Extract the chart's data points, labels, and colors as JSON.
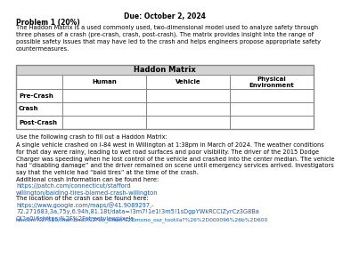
{
  "title": "Due: October 2, 2024",
  "problem_title": "Problem 1 (20%)",
  "intro_text": "The Haddon Matrix is a used commonly used, two-dimensional model used to analyze safety through\nthree phases of a crash (pre-crash, crash, post-crash). The matrix provides insight into the range of\npossible safety issues that may have led to the crash and helps engineers propose appropriate safety\ncountermeasures.",
  "table_title": "Haddon Matrix",
  "col_headers": [
    "Human",
    "Vehicle",
    "Physical\nEnvironment"
  ],
  "row_headers": [
    "Pre-Crash",
    "Crash",
    "Post-Crash"
  ],
  "prompt_text": "Use the following crash to fill out a Haddon Matrix:",
  "crash_text": "A single vehicle crashed on I-84 west in Willington at 1:38pm in March of 2024. The weather conditions\nfor that day were rainy, leading to wet road surfaces and poor visibility. The driver of the 2015 Dodge\nCharger was speeding when he lost control of the vehicle and crashed into the center median. The vehicle\nhad “disabling damage” and the driver remained on scene until emergency services arrived. Investigators\nsay that the vehicle had “bald tires” at the time of the crash.",
  "link_label1": "Additional crash information can be found here: ",
  "link_text1": "https://patch.com/connecticut/stafford\nwillington/balding-tires-blamed-crash-willington",
  "link_label2": "The location of the crash can be found here: ",
  "link_text2": "https://www.google.com/maps/@41.9089297,-\n72.271683,3a,75y,6.94h,81.18t/data=!3m7!1e1!3m5!1sDgpYWkRCCiZyrCz3G8Ba\nQ!2e0!6shttps:%2F%2Fstreetviewpixels",
  "extra_text": "nis.com%2F510/thumbnail%2Fob_client%2Dmono_our_tootila?%26%2D000096%26b%2D600",
  "bg_color": "#ffffff",
  "text_color": "#000000",
  "link_color": "#1155CC",
  "table_border_color": "#888888",
  "table_header_bg": "#d3d3d3",
  "title_fontsize": 5.5,
  "body_fontsize": 4.8,
  "bold_fontsize": 5.5,
  "table_title_fontsize": 6.0,
  "table_body_fontsize": 5.0
}
